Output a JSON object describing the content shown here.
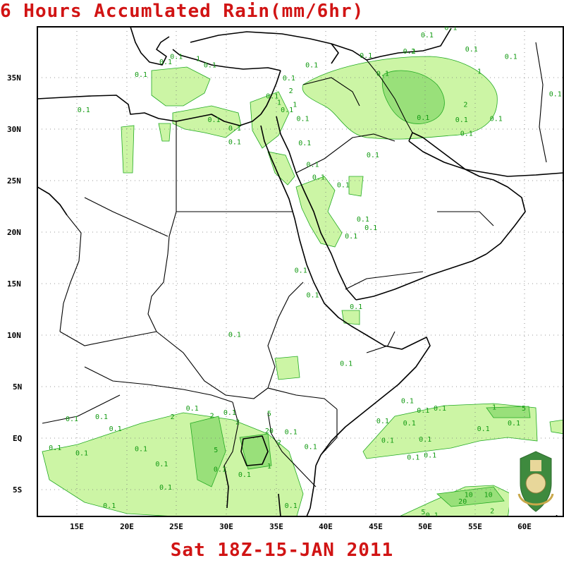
{
  "title": "6 Hours Accumlated Rain(mm/6hr)",
  "footer": "Sat 18Z-15-JAN 2011",
  "map": {
    "lat_ticks": [
      "35N",
      "30N",
      "25N",
      "20N",
      "15N",
      "10N",
      "5N",
      "EQ",
      "5S"
    ],
    "lon_ticks": [
      "15E",
      "20E",
      "25E",
      "30E",
      "35E",
      "40E",
      "45E",
      "50E",
      "55E",
      "60E"
    ],
    "lon_range": [
      10.5,
      63.8
    ],
    "lat_range": [
      -7.3,
      38.5
    ],
    "grid": "dotted",
    "colors": {
      "rain_light": "#ccf5a5",
      "rain_medium": "#99e07a",
      "contour": "#22aa22",
      "coast": "#000000",
      "title": "#d11414"
    }
  },
  "rain_labels": [
    {
      "text": "0.1",
      "lon": 14.0,
      "lat": 1.6
    },
    {
      "text": "0.1",
      "lon": 17.0,
      "lat": 1.8
    },
    {
      "text": "2",
      "lon": 24.2,
      "lat": 1.8
    },
    {
      "text": "0.1",
      "lon": 26.2,
      "lat": 2.6
    },
    {
      "text": "2",
      "lon": 28.2,
      "lat": 1.9
    },
    {
      "text": "0.1",
      "lon": 30.0,
      "lat": 2.2
    },
    {
      "text": "2",
      "lon": 30.8,
      "lat": 1.3
    },
    {
      "text": "5",
      "lon": 34.0,
      "lat": 2.1
    },
    {
      "text": "20",
      "lon": 34.0,
      "lat": 0.5
    },
    {
      "text": "2",
      "lon": 35.0,
      "lat": -0.6
    },
    {
      "text": "0.1",
      "lon": 36.2,
      "lat": 0.4
    },
    {
      "text": "0.1",
      "lon": 38.2,
      "lat": -1.0
    },
    {
      "text": "0.1",
      "lon": 12.3,
      "lat": -1.1
    },
    {
      "text": "0.1",
      "lon": 15.0,
      "lat": -1.6
    },
    {
      "text": "0.1",
      "lon": 18.4,
      "lat": 0.7
    },
    {
      "text": "0.1",
      "lon": 21.0,
      "lat": -1.2
    },
    {
      "text": "0.1",
      "lon": 23.1,
      "lat": -2.6
    },
    {
      "text": "0.1",
      "lon": 23.5,
      "lat": -4.8
    },
    {
      "text": "5",
      "lon": 28.6,
      "lat": -1.3
    },
    {
      "text": "0.1",
      "lon": 29.0,
      "lat": -3.1
    },
    {
      "text": "0.1",
      "lon": 31.5,
      "lat": -3.6
    },
    {
      "text": "1",
      "lon": 34.0,
      "lat": -2.8
    },
    {
      "text": "0.1",
      "lon": 36.2,
      "lat": -6.5
    },
    {
      "text": "0.1",
      "lon": 17.8,
      "lat": -6.5
    },
    {
      "text": "0.1",
      "lon": 48.0,
      "lat": 3.3
    },
    {
      "text": "0.1",
      "lon": 49.6,
      "lat": 2.4
    },
    {
      "text": "0.1",
      "lon": 48.2,
      "lat": 1.2
    },
    {
      "text": "0.1",
      "lon": 46.0,
      "lat": -0.4
    },
    {
      "text": "0.1",
      "lon": 49.8,
      "lat": -0.3
    },
    {
      "text": "0.1",
      "lon": 48.6,
      "lat": -2.0
    },
    {
      "text": "0.1",
      "lon": 45.5,
      "lat": 1.4
    },
    {
      "text": "0.1",
      "lon": 51.3,
      "lat": 2.6
    },
    {
      "text": "0.1",
      "lon": 55.7,
      "lat": 0.7
    },
    {
      "text": "5",
      "lon": 59.8,
      "lat": 2.6
    },
    {
      "text": "1",
      "lon": 56.8,
      "lat": 2.7
    },
    {
      "text": "0.1",
      "lon": 58.8,
      "lat": 1.2
    },
    {
      "text": "0.1",
      "lon": 50.3,
      "lat": -1.8
    },
    {
      "text": "20",
      "lon": 53.6,
      "lat": -6.1
    },
    {
      "text": "10",
      "lon": 54.2,
      "lat": -5.5
    },
    {
      "text": "10",
      "lon": 56.2,
      "lat": -5.5
    },
    {
      "text": "2",
      "lon": 56.6,
      "lat": -7.0
    },
    {
      "text": "0.1",
      "lon": 50.5,
      "lat": -7.4
    },
    {
      "text": "5",
      "lon": 49.6,
      "lat": -7.1
    },
    {
      "text": "0.1",
      "lon": 30.5,
      "lat": 9.5
    },
    {
      "text": "0.1",
      "lon": 41.8,
      "lat": 6.8
    },
    {
      "text": "0.1",
      "lon": 38.4,
      "lat": 13.2
    },
    {
      "text": "0.1",
      "lon": 42.8,
      "lat": 12.1
    },
    {
      "text": "0.1",
      "lon": 44.3,
      "lat": 19.5
    },
    {
      "text": "0.1",
      "lon": 39.0,
      "lat": 24.2
    },
    {
      "text": "0.1",
      "lon": 44.5,
      "lat": 26.3
    },
    {
      "text": "0.1",
      "lon": 41.5,
      "lat": 23.5
    },
    {
      "text": "0.1",
      "lon": 43.5,
      "lat": 20.3
    },
    {
      "text": "0.1",
      "lon": 42.3,
      "lat": 18.7
    },
    {
      "text": "0.1",
      "lon": 37.2,
      "lat": 15.5
    },
    {
      "text": "0.1",
      "lon": 37.4,
      "lat": 29.7
    },
    {
      "text": "0.1",
      "lon": 37.6,
      "lat": 27.4
    },
    {
      "text": "0.1",
      "lon": 38.4,
      "lat": 25.4
    },
    {
      "text": "0.1",
      "lon": 15.2,
      "lat": 30.5
    },
    {
      "text": "0.1",
      "lon": 21.0,
      "lat": 33.8
    },
    {
      "text": "0.1",
      "lon": 23.5,
      "lat": 35.0
    },
    {
      "text": "0.1",
      "lon": 24.6,
      "lat": 35.5
    },
    {
      "text": "1",
      "lon": 26.8,
      "lat": 35.3
    },
    {
      "text": "0.1",
      "lon": 28.0,
      "lat": 34.7
    },
    {
      "text": "0.1",
      "lon": 28.4,
      "lat": 29.6
    },
    {
      "text": "0.1",
      "lon": 30.5,
      "lat": 28.8
    },
    {
      "text": "0.1",
      "lon": 30.5,
      "lat": 27.5
    },
    {
      "text": "0.1",
      "lon": 34.3,
      "lat": 31.8
    },
    {
      "text": "2",
      "lon": 36.2,
      "lat": 32.3
    },
    {
      "text": "1",
      "lon": 35.0,
      "lat": 31.2
    },
    {
      "text": "0.1",
      "lon": 35.8,
      "lat": 30.5
    },
    {
      "text": "1",
      "lon": 36.6,
      "lat": 31.0
    },
    {
      "text": "0.1",
      "lon": 38.3,
      "lat": 34.7
    },
    {
      "text": "0.1",
      "lon": 36.0,
      "lat": 33.5
    },
    {
      "text": "0.1",
      "lon": 43.8,
      "lat": 35.6
    },
    {
      "text": "0.1",
      "lon": 45.5,
      "lat": 33.9
    },
    {
      "text": "0.1",
      "lon": 50.0,
      "lat": 37.5
    },
    {
      "text": "2",
      "lon": 48.6,
      "lat": 36.0
    },
    {
      "text": "0.1",
      "lon": 48.2,
      "lat": 36.0
    },
    {
      "text": "0.1",
      "lon": 52.4,
      "lat": 38.2
    },
    {
      "text": "0.1",
      "lon": 54.5,
      "lat": 36.2
    },
    {
      "text": "1",
      "lon": 55.3,
      "lat": 34.1
    },
    {
      "text": "2",
      "lon": 53.9,
      "lat": 31.0
    },
    {
      "text": "0.1",
      "lon": 49.6,
      "lat": 29.8
    },
    {
      "text": "0.1",
      "lon": 53.5,
      "lat": 29.6
    },
    {
      "text": "0.1",
      "lon": 54.0,
      "lat": 28.3
    },
    {
      "text": "0.1",
      "lon": 57.0,
      "lat": 29.7
    },
    {
      "text": "0.1",
      "lon": 63.0,
      "lat": 32.0
    },
    {
      "text": "0.1",
      "lon": 58.5,
      "lat": 35.5
    }
  ]
}
